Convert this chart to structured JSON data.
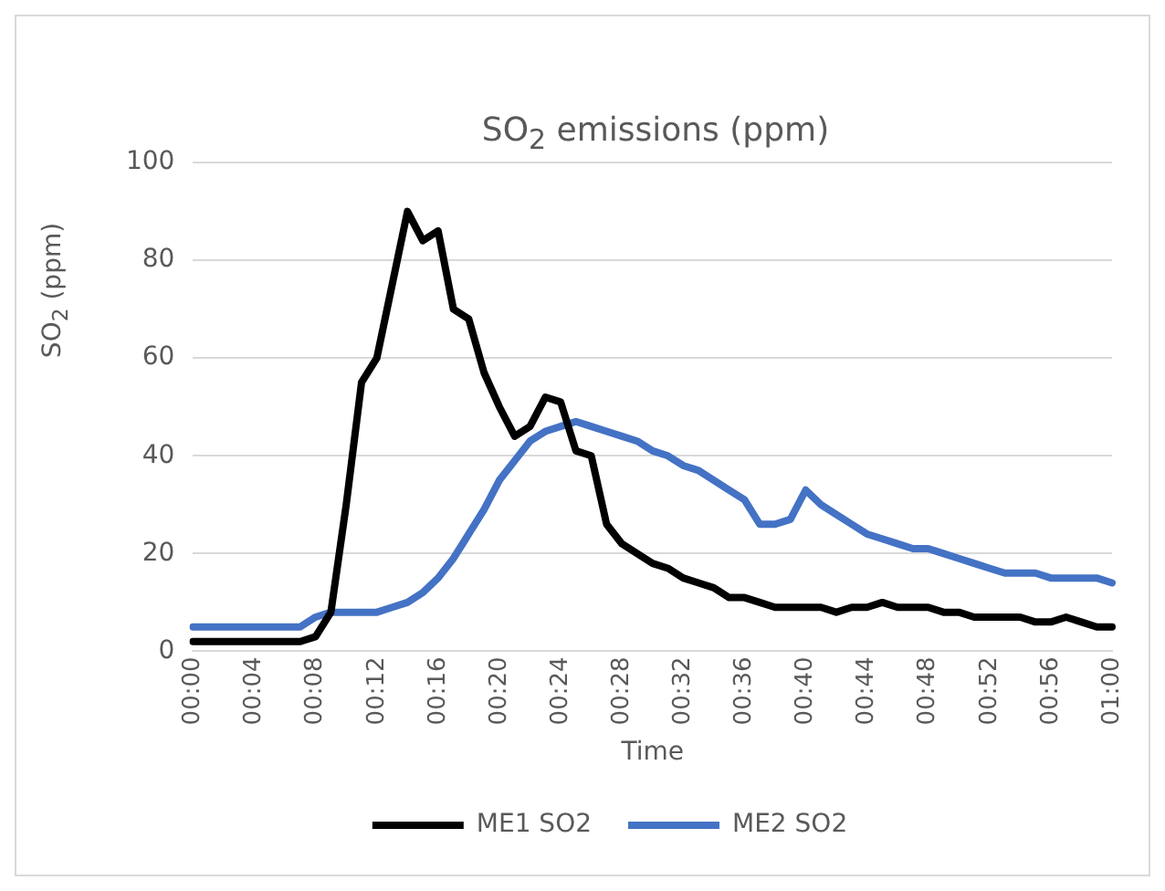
{
  "chart_data": {
    "type": "line",
    "title": "SO$_{2}$ emissions (ppm)",
    "xlabel": "Time",
    "ylabel": "SO$_{2}$ (ppm)",
    "categories": [
      "00:00",
      null,
      null,
      null,
      "00:04",
      null,
      null,
      null,
      "00:08",
      null,
      null,
      null,
      "00:12",
      null,
      null,
      null,
      "00:16",
      null,
      null,
      null,
      "00:20",
      null,
      null,
      null,
      "00:24",
      null,
      null,
      null,
      "00:28",
      null,
      null,
      null,
      "00:32",
      null,
      null,
      null,
      "00:36",
      null,
      null,
      null,
      "00:40",
      null,
      null,
      null,
      "00:44",
      null,
      null,
      null,
      "00:48",
      null,
      null,
      null,
      "00:52",
      null,
      null,
      null,
      "00:56",
      null,
      null,
      null,
      "01:00"
    ],
    "series": [
      {
        "name": "ME1 SO2",
        "color": "#000000",
        "values": [
          2,
          2,
          2,
          2,
          2,
          2,
          2,
          2,
          3,
          8,
          30,
          55,
          60,
          75,
          90,
          84,
          86,
          70,
          68,
          57,
          50,
          44,
          46,
          52,
          51,
          41,
          40,
          26,
          22,
          20,
          18,
          17,
          15,
          14,
          13,
          11,
          11,
          10,
          9,
          9,
          9,
          9,
          8,
          9,
          9,
          10,
          9,
          9,
          9,
          8,
          8,
          7,
          7,
          7,
          7,
          6,
          6,
          7,
          6,
          5,
          5
        ]
      },
      {
        "name": "ME2 SO2",
        "color": "#4472c4",
        "values": [
          5,
          5,
          5,
          5,
          5,
          5,
          5,
          5,
          7,
          8,
          8,
          8,
          8,
          9,
          10,
          12,
          15,
          19,
          24,
          29,
          35,
          39,
          43,
          45,
          46,
          47,
          46,
          45,
          44,
          43,
          41,
          40,
          38,
          37,
          35,
          33,
          31,
          26,
          26,
          27,
          33,
          30,
          28,
          26,
          24,
          23,
          22,
          21,
          21,
          20,
          19,
          18,
          17,
          16,
          16,
          16,
          15,
          15,
          15,
          15,
          14
        ]
      }
    ],
    "ylim": [
      0,
      100
    ],
    "yticks": [
      0,
      20,
      40,
      60,
      80,
      100
    ],
    "grid": "y",
    "legend": "bottom",
    "marker": "none",
    "line_style": "solid"
  }
}
